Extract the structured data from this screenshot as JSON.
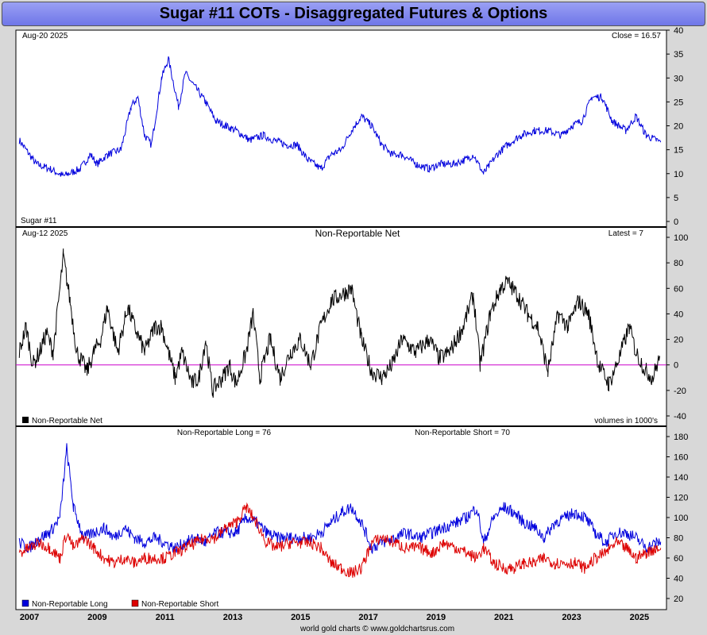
{
  "title": "Sugar #11 COTs - Disaggregated Futures & Options",
  "footer": "world gold charts © www.goldchartsrus.com",
  "colors": {
    "price": "#0000dd",
    "net": "#000000",
    "zero_line": "#cc00cc",
    "long": "#0000dd",
    "short": "#dd0000"
  },
  "panel1": {
    "date_label": "Aug-20  2025",
    "close_label": "Close = 16.57",
    "name_label": "Sugar #11"
  },
  "panel2": {
    "date_label": "Aug-12  2025",
    "title": "Non-Reportable Net",
    "latest_label": "Latest = 7",
    "legend": "Non-Reportable Net",
    "units_label": "volumes in 1000's"
  },
  "panel3": {
    "long_label": "Non-Reportable Long = 76",
    "short_label": "Non-Reportable Short = 70",
    "legend_long": "Non-Reportable Long",
    "legend_short": "Non-Reportable Short"
  },
  "x_labels": [
    "2007",
    "2009",
    "2011",
    "2013",
    "2015",
    "2017",
    "2019",
    "2021",
    "2023",
    "2025"
  ],
  "chart_data": [
    {
      "type": "line",
      "title": "Sugar #11",
      "ylim": [
        0,
        40
      ],
      "yticks": [
        0,
        5,
        10,
        15,
        20,
        25,
        30,
        35,
        40
      ],
      "series": [
        {
          "name": "Sugar #11",
          "points": [
            [
              2006.7,
              17
            ],
            [
              2007.2,
              12
            ],
            [
              2007.6,
              11
            ],
            [
              2008.0,
              9.5
            ],
            [
              2008.5,
              11
            ],
            [
              2008.8,
              14
            ],
            [
              2009.0,
              12
            ],
            [
              2009.3,
              14
            ],
            [
              2009.7,
              15
            ],
            [
              2010.0,
              24
            ],
            [
              2010.2,
              26
            ],
            [
              2010.4,
              18
            ],
            [
              2010.6,
              16
            ],
            [
              2010.9,
              30
            ],
            [
              2011.1,
              34
            ],
            [
              2011.4,
              24
            ],
            [
              2011.6,
              31
            ],
            [
              2011.9,
              28
            ],
            [
              2012.2,
              25
            ],
            [
              2012.5,
              21
            ],
            [
              2012.8,
              20
            ],
            [
              2013.1,
              19
            ],
            [
              2013.5,
              17
            ],
            [
              2013.9,
              18
            ],
            [
              2014.2,
              17
            ],
            [
              2014.6,
              16
            ],
            [
              2014.9,
              16
            ],
            [
              2015.2,
              13
            ],
            [
              2015.6,
              11
            ],
            [
              2015.9,
              14
            ],
            [
              2016.2,
              15
            ],
            [
              2016.5,
              19
            ],
            [
              2016.8,
              22
            ],
            [
              2017.1,
              20
            ],
            [
              2017.4,
              16
            ],
            [
              2017.7,
              14
            ],
            [
              2018.0,
              14
            ],
            [
              2018.4,
              12
            ],
            [
              2018.8,
              11
            ],
            [
              2019.1,
              12
            ],
            [
              2019.5,
              12
            ],
            [
              2019.9,
              13
            ],
            [
              2020.1,
              14
            ],
            [
              2020.4,
              10
            ],
            [
              2020.8,
              14
            ],
            [
              2021.1,
              16
            ],
            [
              2021.5,
              18
            ],
            [
              2021.9,
              19
            ],
            [
              2022.3,
              19
            ],
            [
              2022.7,
              18
            ],
            [
              2023.0,
              20
            ],
            [
              2023.3,
              21
            ],
            [
              2023.6,
              26
            ],
            [
              2023.9,
              26
            ],
            [
              2024.2,
              21
            ],
            [
              2024.6,
              19
            ],
            [
              2024.9,
              22
            ],
            [
              2025.2,
              18
            ],
            [
              2025.5,
              17
            ],
            [
              2025.63,
              16.57
            ]
          ]
        }
      ]
    },
    {
      "type": "line",
      "title": "Non-Reportable Net",
      "ylim": [
        -40,
        100
      ],
      "yticks": [
        -40,
        -20,
        0,
        20,
        40,
        60,
        80,
        100
      ],
      "series": [
        {
          "name": "Non-Reportable Net",
          "points": [
            [
              2006.7,
              10
            ],
            [
              2006.9,
              30
            ],
            [
              2007.1,
              0
            ],
            [
              2007.3,
              10
            ],
            [
              2007.5,
              25
            ],
            [
              2007.7,
              10
            ],
            [
              2008.0,
              85
            ],
            [
              2008.2,
              50
            ],
            [
              2008.4,
              10
            ],
            [
              2008.7,
              -5
            ],
            [
              2008.9,
              10
            ],
            [
              2009.1,
              20
            ],
            [
              2009.3,
              45
            ],
            [
              2009.6,
              10
            ],
            [
              2009.9,
              45
            ],
            [
              2010.1,
              30
            ],
            [
              2010.4,
              10
            ],
            [
              2010.7,
              30
            ],
            [
              2010.9,
              30
            ],
            [
              2011.1,
              10
            ],
            [
              2011.3,
              -10
            ],
            [
              2011.5,
              10
            ],
            [
              2011.8,
              -15
            ],
            [
              2012.0,
              -10
            ],
            [
              2012.2,
              20
            ],
            [
              2012.4,
              -20
            ],
            [
              2012.7,
              -10
            ],
            [
              2012.9,
              0
            ],
            [
              2013.1,
              -15
            ],
            [
              2013.4,
              10
            ],
            [
              2013.6,
              40
            ],
            [
              2013.8,
              -10
            ],
            [
              2014.1,
              20
            ],
            [
              2014.4,
              -10
            ],
            [
              2014.7,
              10
            ],
            [
              2015.0,
              20
            ],
            [
              2015.3,
              0
            ],
            [
              2015.6,
              30
            ],
            [
              2015.9,
              50
            ],
            [
              2016.2,
              55
            ],
            [
              2016.5,
              60
            ],
            [
              2016.8,
              20
            ],
            [
              2017.1,
              -5
            ],
            [
              2017.4,
              -10
            ],
            [
              2017.7,
              0
            ],
            [
              2018.0,
              20
            ],
            [
              2018.4,
              10
            ],
            [
              2018.8,
              20
            ],
            [
              2019.1,
              5
            ],
            [
              2019.4,
              10
            ],
            [
              2019.8,
              30
            ],
            [
              2020.1,
              55
            ],
            [
              2020.3,
              0
            ],
            [
              2020.6,
              40
            ],
            [
              2020.9,
              60
            ],
            [
              2021.1,
              65
            ],
            [
              2021.4,
              55
            ],
            [
              2021.7,
              40
            ],
            [
              2022.0,
              30
            ],
            [
              2022.3,
              -5
            ],
            [
              2022.6,
              40
            ],
            [
              2022.9,
              30
            ],
            [
              2023.2,
              50
            ],
            [
              2023.5,
              40
            ],
            [
              2023.8,
              0
            ],
            [
              2024.1,
              -15
            ],
            [
              2024.4,
              5
            ],
            [
              2024.7,
              30
            ],
            [
              2024.9,
              10
            ],
            [
              2025.2,
              -5
            ],
            [
              2025.4,
              -10
            ],
            [
              2025.6,
              7
            ]
          ]
        }
      ]
    },
    {
      "type": "line",
      "title": "",
      "ylim": [
        20,
        180
      ],
      "yticks": [
        20,
        40,
        60,
        80,
        100,
        120,
        140,
        160,
        180
      ],
      "series": [
        {
          "name": "Non-Reportable Long",
          "points": [
            [
              2006.7,
              75
            ],
            [
              2007.0,
              70
            ],
            [
              2007.3,
              80
            ],
            [
              2007.6,
              85
            ],
            [
              2007.9,
              100
            ],
            [
              2008.1,
              168
            ],
            [
              2008.3,
              110
            ],
            [
              2008.6,
              80
            ],
            [
              2008.9,
              85
            ],
            [
              2009.2,
              90
            ],
            [
              2009.5,
              80
            ],
            [
              2009.8,
              90
            ],
            [
              2010.1,
              80
            ],
            [
              2010.4,
              75
            ],
            [
              2010.7,
              80
            ],
            [
              2011.0,
              75
            ],
            [
              2011.3,
              70
            ],
            [
              2011.6,
              75
            ],
            [
              2011.9,
              80
            ],
            [
              2012.2,
              75
            ],
            [
              2012.5,
              85
            ],
            [
              2012.8,
              85
            ],
            [
              2013.1,
              85
            ],
            [
              2013.4,
              100
            ],
            [
              2013.7,
              95
            ],
            [
              2014.0,
              85
            ],
            [
              2014.3,
              80
            ],
            [
              2014.7,
              80
            ],
            [
              2015.0,
              80
            ],
            [
              2015.3,
              80
            ],
            [
              2015.6,
              85
            ],
            [
              2015.9,
              95
            ],
            [
              2016.2,
              105
            ],
            [
              2016.5,
              110
            ],
            [
              2016.8,
              95
            ],
            [
              2017.1,
              70
            ],
            [
              2017.4,
              75
            ],
            [
              2017.8,
              80
            ],
            [
              2018.1,
              85
            ],
            [
              2018.5,
              80
            ],
            [
              2018.9,
              85
            ],
            [
              2019.2,
              90
            ],
            [
              2019.6,
              95
            ],
            [
              2019.9,
              100
            ],
            [
              2020.2,
              110
            ],
            [
              2020.4,
              75
            ],
            [
              2020.7,
              100
            ],
            [
              2021.0,
              110
            ],
            [
              2021.3,
              105
            ],
            [
              2021.6,
              95
            ],
            [
              2021.9,
              90
            ],
            [
              2022.2,
              80
            ],
            [
              2022.5,
              95
            ],
            [
              2022.8,
              100
            ],
            [
              2023.1,
              105
            ],
            [
              2023.4,
              100
            ],
            [
              2023.7,
              85
            ],
            [
              2024.0,
              75
            ],
            [
              2024.3,
              85
            ],
            [
              2024.6,
              85
            ],
            [
              2024.9,
              80
            ],
            [
              2025.2,
              70
            ],
            [
              2025.5,
              75
            ],
            [
              2025.63,
              76
            ]
          ]
        },
        {
          "name": "Non-Reportable Short",
          "points": [
            [
              2006.7,
              65
            ],
            [
              2007.0,
              70
            ],
            [
              2007.3,
              75
            ],
            [
              2007.6,
              70
            ],
            [
              2007.9,
              60
            ],
            [
              2008.1,
              85
            ],
            [
              2008.3,
              70
            ],
            [
              2008.6,
              80
            ],
            [
              2008.9,
              70
            ],
            [
              2009.2,
              60
            ],
            [
              2009.5,
              55
            ],
            [
              2009.8,
              60
            ],
            [
              2010.1,
              55
            ],
            [
              2010.4,
              60
            ],
            [
              2010.7,
              60
            ],
            [
              2011.0,
              60
            ],
            [
              2011.3,
              65
            ],
            [
              2011.6,
              70
            ],
            [
              2011.9,
              75
            ],
            [
              2012.2,
              80
            ],
            [
              2012.5,
              80
            ],
            [
              2012.8,
              90
            ],
            [
              2013.1,
              95
            ],
            [
              2013.4,
              110
            ],
            [
              2013.7,
              95
            ],
            [
              2014.0,
              75
            ],
            [
              2014.3,
              70
            ],
            [
              2014.7,
              75
            ],
            [
              2015.0,
              75
            ],
            [
              2015.3,
              75
            ],
            [
              2015.6,
              70
            ],
            [
              2015.9,
              55
            ],
            [
              2016.2,
              50
            ],
            [
              2016.5,
              45
            ],
            [
              2016.8,
              50
            ],
            [
              2017.1,
              75
            ],
            [
              2017.4,
              80
            ],
            [
              2017.8,
              75
            ],
            [
              2018.1,
              70
            ],
            [
              2018.5,
              70
            ],
            [
              2018.9,
              65
            ],
            [
              2019.2,
              75
            ],
            [
              2019.6,
              70
            ],
            [
              2019.9,
              65
            ],
            [
              2020.2,
              60
            ],
            [
              2020.4,
              70
            ],
            [
              2020.7,
              55
            ],
            [
              2021.0,
              50
            ],
            [
              2021.3,
              50
            ],
            [
              2021.6,
              55
            ],
            [
              2021.9,
              55
            ],
            [
              2022.2,
              60
            ],
            [
              2022.5,
              55
            ],
            [
              2022.8,
              55
            ],
            [
              2023.1,
              55
            ],
            [
              2023.4,
              50
            ],
            [
              2023.7,
              60
            ],
            [
              2024.0,
              65
            ],
            [
              2024.3,
              75
            ],
            [
              2024.6,
              70
            ],
            [
              2024.9,
              60
            ],
            [
              2025.2,
              65
            ],
            [
              2025.5,
              70
            ],
            [
              2025.63,
              70
            ]
          ]
        }
      ]
    }
  ]
}
